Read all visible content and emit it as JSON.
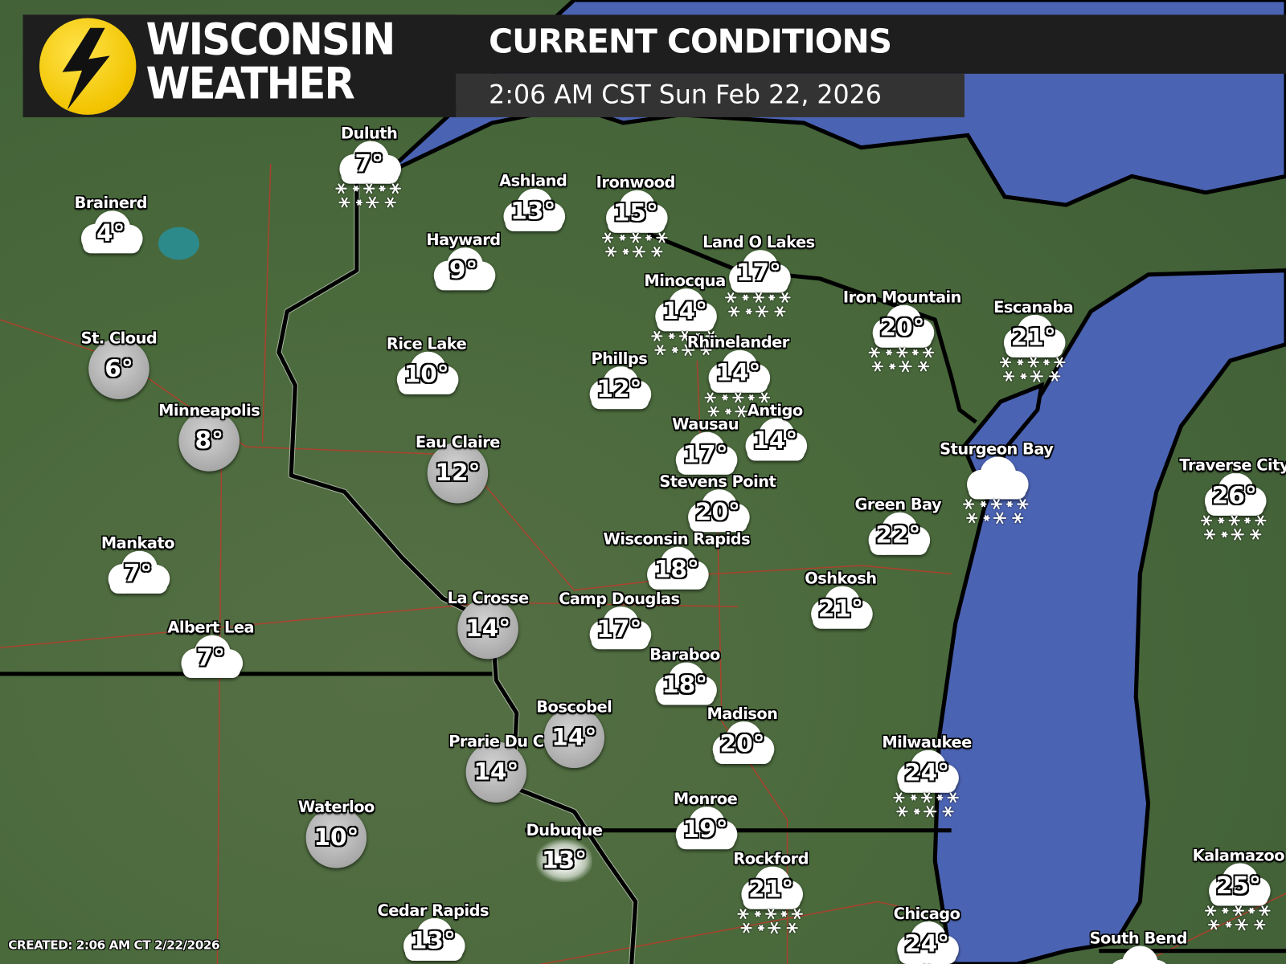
{
  "header": {
    "brand_line1": "WISCONSIN",
    "brand_line2": "WEATHER",
    "title": "CURRENT CONDITIONS",
    "datetime": "2:06 AM CST Sun Feb 22, 2026"
  },
  "footer": {
    "created": "CREATED: 2:06 AM CT 2/22/2026"
  },
  "colors": {
    "land": "#4a6a3c",
    "water": "#4b63b3",
    "border": "#000000",
    "roads": "#c0392b",
    "logo": "#f2c400",
    "header_bg": "#1e1e1e"
  },
  "stations": [
    {
      "name": "Duluth",
      "temp": "7°",
      "icon": "cloud-snow"
    },
    {
      "name": "Brainerd",
      "temp": "4°",
      "icon": "cloud"
    },
    {
      "name": "Ashland",
      "temp": "13°",
      "icon": "cloud"
    },
    {
      "name": "Ironwood",
      "temp": "15°",
      "icon": "cloud-snow"
    },
    {
      "name": "Hayward",
      "temp": "9°",
      "icon": "cloud"
    },
    {
      "name": "Land O Lakes",
      "temp": "17°",
      "icon": "cloud-snow"
    },
    {
      "name": "Minocqua",
      "temp": "14°",
      "icon": "cloud-snow"
    },
    {
      "name": "Iron Mountain",
      "temp": "20°",
      "icon": "cloud-snow"
    },
    {
      "name": "Escanaba",
      "temp": "21°",
      "icon": "cloud-snow"
    },
    {
      "name": "St. Cloud",
      "temp": "6°",
      "icon": "overcast"
    },
    {
      "name": "Rhinelander",
      "temp": "14°",
      "icon": "cloud-snow"
    },
    {
      "name": "Rice Lake",
      "temp": "10°",
      "icon": "cloud"
    },
    {
      "name": "Phillps",
      "temp": "12°",
      "icon": "cloud"
    },
    {
      "name": "Minneapolis",
      "temp": "8°",
      "icon": "overcast"
    },
    {
      "name": "Eau Claire",
      "temp": "12°",
      "icon": "overcast"
    },
    {
      "name": "Wausau",
      "temp": "17°",
      "icon": "cloud"
    },
    {
      "name": "Antigo",
      "temp": "14°",
      "icon": "cloud"
    },
    {
      "name": "Sturgeon Bay",
      "temp": "",
      "icon": "cloud-snow"
    },
    {
      "name": "Traverse City",
      "temp": "26°",
      "icon": "cloud-snow"
    },
    {
      "name": "Stevens Point",
      "temp": "20°",
      "icon": "cloud"
    },
    {
      "name": "Wisconsin Rapids",
      "temp": "18°",
      "icon": "cloud"
    },
    {
      "name": "Green Bay",
      "temp": "22°",
      "icon": "cloud"
    },
    {
      "name": "Mankato",
      "temp": "7°",
      "icon": "cloud"
    },
    {
      "name": "Oshkosh",
      "temp": "21°",
      "icon": "cloud"
    },
    {
      "name": "La Crosse",
      "temp": "14°",
      "icon": "overcast"
    },
    {
      "name": "Camp Douglas",
      "temp": "17°",
      "icon": "cloud"
    },
    {
      "name": "Albert Lea",
      "temp": "7°",
      "icon": "cloud"
    },
    {
      "name": "Baraboo",
      "temp": "18°",
      "icon": "cloud"
    },
    {
      "name": "Boscobel",
      "temp": "14°",
      "icon": "overcast"
    },
    {
      "name": "Prarie Du C",
      "temp": "14°",
      "icon": "overcast"
    },
    {
      "name": "Madison",
      "temp": "20°",
      "icon": "cloud"
    },
    {
      "name": "Milwaukee",
      "temp": "24°",
      "icon": "cloud-snow"
    },
    {
      "name": "Monroe",
      "temp": "19°",
      "icon": "cloud"
    },
    {
      "name": "Waterloo",
      "temp": "10°",
      "icon": "overcast"
    },
    {
      "name": "Dubuque",
      "temp": "13°",
      "icon": "fog"
    },
    {
      "name": "Rockford",
      "temp": "21°",
      "icon": "cloud-snow"
    },
    {
      "name": "Kalamazoo",
      "temp": "25°",
      "icon": "cloud-snow"
    },
    {
      "name": "Cedar Rapids",
      "temp": "13°",
      "icon": "cloud"
    },
    {
      "name": "Chicago",
      "temp": "24°",
      "icon": "cloud-snow"
    },
    {
      "name": "South Bend",
      "temp": "",
      "icon": "cloud"
    }
  ]
}
